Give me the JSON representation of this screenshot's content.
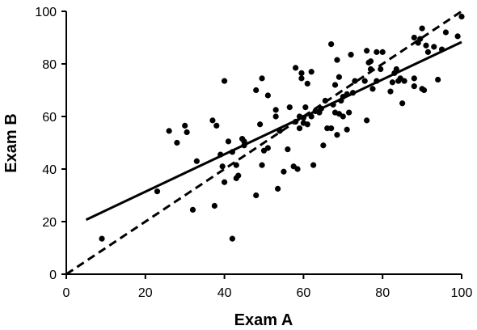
{
  "chart_data": {
    "type": "scatter",
    "title": "",
    "xlabel": "Exam A",
    "ylabel": "Exam B",
    "xlim": [
      0,
      100
    ],
    "ylim": [
      0,
      100
    ],
    "xticks": [
      "0",
      "20",
      "40",
      "60",
      "80",
      "100"
    ],
    "yticks": [
      "0",
      "20",
      "40",
      "60",
      "80",
      "100"
    ],
    "grid": false,
    "points": [
      [
        9,
        13.5
      ],
      [
        23,
        31.5
      ],
      [
        26,
        54.5
      ],
      [
        28,
        50
      ],
      [
        30,
        56.5
      ],
      [
        30.5,
        54
      ],
      [
        32,
        24.5
      ],
      [
        33,
        43
      ],
      [
        37,
        58.5
      ],
      [
        37.5,
        26
      ],
      [
        38,
        56.5
      ],
      [
        39,
        45.5
      ],
      [
        39.5,
        41
      ],
      [
        40,
        35
      ],
      [
        40,
        73.5
      ],
      [
        41,
        50.5
      ],
      [
        42,
        46.5
      ],
      [
        42,
        13.5
      ],
      [
        43,
        36.5
      ],
      [
        43,
        41.5
      ],
      [
        43.5,
        37.5
      ],
      [
        44.5,
        51.5
      ],
      [
        45,
        49
      ],
      [
        45,
        50.5
      ],
      [
        48,
        70
      ],
      [
        48,
        30
      ],
      [
        49,
        57
      ],
      [
        49.5,
        74.5
      ],
      [
        49.5,
        41.5
      ],
      [
        50,
        47
      ],
      [
        51,
        68
      ],
      [
        51,
        48
      ],
      [
        53,
        62.5
      ],
      [
        53,
        60
      ],
      [
        53.5,
        32.5
      ],
      [
        54,
        54.5
      ],
      [
        55,
        39
      ],
      [
        56,
        47.5
      ],
      [
        56.5,
        63.5
      ],
      [
        57.5,
        41
      ],
      [
        58,
        78.5
      ],
      [
        58,
        58
      ],
      [
        58.5,
        40
      ],
      [
        59,
        55.5
      ],
      [
        59,
        60
      ],
      [
        59.5,
        76.5
      ],
      [
        59.5,
        74.5
      ],
      [
        60,
        59.5
      ],
      [
        60,
        57.5
      ],
      [
        60.5,
        63.5
      ],
      [
        61,
        72.5
      ],
      [
        61,
        57
      ],
      [
        62,
        77
      ],
      [
        62,
        60
      ],
      [
        62.5,
        41.5
      ],
      [
        63,
        62
      ],
      [
        64,
        61.5
      ],
      [
        64.5,
        63
      ],
      [
        65,
        49
      ],
      [
        65.5,
        66
      ],
      [
        66,
        55.5
      ],
      [
        67,
        55.5
      ],
      [
        67,
        87.5
      ],
      [
        67.5,
        64.5
      ],
      [
        68,
        61.5
      ],
      [
        68,
        72
      ],
      [
        68.5,
        53
      ],
      [
        68.5,
        81.5
      ],
      [
        69,
        75
      ],
      [
        69,
        61
      ],
      [
        69.5,
        66
      ],
      [
        70,
        67.5
      ],
      [
        70,
        60
      ],
      [
        71,
        55
      ],
      [
        71,
        68.5
      ],
      [
        71.5,
        61.5
      ],
      [
        72,
        83.5
      ],
      [
        72.5,
        69
      ],
      [
        73,
        73.5
      ],
      [
        75.5,
        73.5
      ],
      [
        76,
        85
      ],
      [
        76,
        58.5
      ],
      [
        76.5,
        80.5
      ],
      [
        77,
        81
      ],
      [
        77,
        78
      ],
      [
        77.5,
        70.5
      ],
      [
        78.5,
        73.5
      ],
      [
        78.5,
        84.5
      ],
      [
        79.5,
        78
      ],
      [
        80,
        84.5
      ],
      [
        82,
        69.5
      ],
      [
        82.5,
        73
      ],
      [
        83,
        76.5
      ],
      [
        83.5,
        78
      ],
      [
        84,
        73.5
      ],
      [
        84.5,
        74.5
      ],
      [
        85,
        65
      ],
      [
        85.5,
        73.5
      ],
      [
        88,
        90
      ],
      [
        88,
        74.5
      ],
      [
        88,
        71.5
      ],
      [
        89,
        88
      ],
      [
        89.5,
        89.5
      ],
      [
        90,
        93.5
      ],
      [
        90,
        70.5
      ],
      [
        90.5,
        70
      ],
      [
        91,
        87
      ],
      [
        91.5,
        84.5
      ],
      [
        93,
        86.5
      ],
      [
        94,
        74
      ],
      [
        95,
        85.5
      ],
      [
        96,
        92
      ],
      [
        99,
        90.5
      ],
      [
        100,
        98
      ]
    ],
    "lines": [
      {
        "style": "solid",
        "x": [
          5,
          100
        ],
        "y": [
          20.7,
          88.3
        ]
      },
      {
        "style": "dashed",
        "x": [
          0,
          100
        ],
        "y": [
          0,
          100
        ]
      }
    ]
  }
}
